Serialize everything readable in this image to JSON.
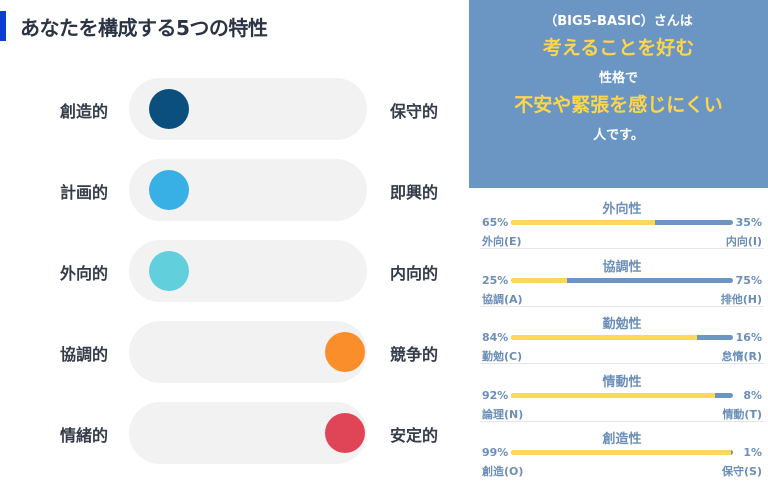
{
  "title": "あなたを構成する5つの特性",
  "sliders": [
    {
      "left": "創造的",
      "right": "保守的",
      "position": 0,
      "color": "#0a4f7e"
    },
    {
      "left": "計画的",
      "right": "即興的",
      "position": 0,
      "color": "#38b0e6"
    },
    {
      "left": "外向的",
      "right": "内向的",
      "position": 0,
      "color": "#62d0dc"
    },
    {
      "left": "協調的",
      "right": "競争的",
      "position": 1,
      "color": "#f98e2a"
    },
    {
      "left": "情緒的",
      "right": "安定的",
      "position": 1,
      "color": "#e04557"
    }
  ],
  "summary": {
    "line1": "（BIG5-BASIC）さんは",
    "line2": "考えることを好む",
    "line3": "性格で",
    "line4": "不安や緊張を感じにくい",
    "line5": "人です。"
  },
  "traits": [
    {
      "name": "外向性",
      "left_pct": "65%",
      "right_pct": "35%",
      "left_label": "外向(E)",
      "right_label": "内向(I)",
      "value": 65
    },
    {
      "name": "協調性",
      "left_pct": "25%",
      "right_pct": "75%",
      "left_label": "協調(A)",
      "right_label": "排他(H)",
      "value": 25
    },
    {
      "name": "勤勉性",
      "left_pct": "84%",
      "right_pct": "16%",
      "left_label": "勤勉(C)",
      "right_label": "怠惰(R)",
      "value": 84
    },
    {
      "name": "情動性",
      "left_pct": "92%",
      "right_pct": "8%",
      "left_label": "論理(N)",
      "right_label": "情動(T)",
      "value": 92
    },
    {
      "name": "創造性",
      "left_pct": "99%",
      "right_pct": "1%",
      "left_label": "創造(O)",
      "right_label": "保守(S)",
      "value": 99
    }
  ]
}
